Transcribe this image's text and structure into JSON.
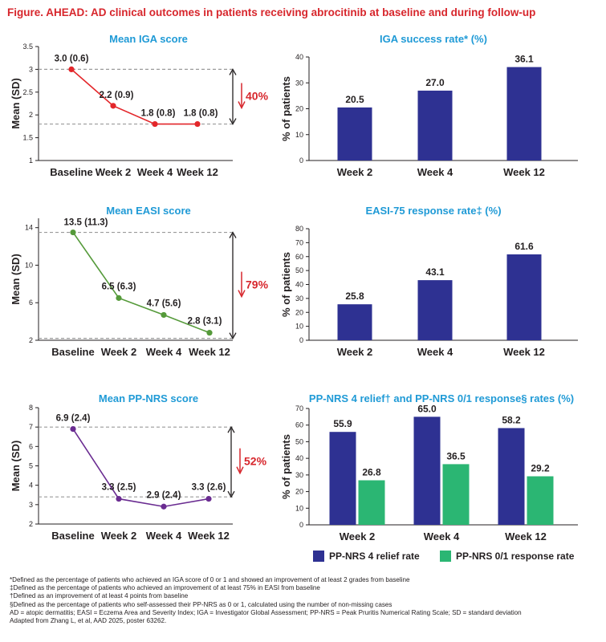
{
  "figure_title": "Figure. AHEAD: AD clinical outcomes in patients receiving abrocitinib at baseline and during follow-up",
  "colors": {
    "title_red": "#d7262c",
    "panel_title_blue": "#1f9ad6",
    "iga_line": "#e3262a",
    "easi_line": "#559a3a",
    "ppnrs_line": "#6a2c91",
    "bar_blue": "#2e3192",
    "bar_green": "#2bb673",
    "reduction_red": "#d7262c",
    "dashed_grey": "#9a9a9a"
  },
  "chart_data": [
    {
      "id": "iga_mean",
      "type": "line",
      "title": "Mean IGA score",
      "ylabel": "Mean (SD)",
      "xlabel": "",
      "categories": [
        "Baseline",
        "Week 2",
        "Week 4",
        "Week 12"
      ],
      "series": [
        {
          "values": [
            3.0,
            2.2,
            1.8,
            1.8
          ]
        }
      ],
      "data_labels": [
        "3.0 (0.6)",
        "2.2 (0.9)",
        "1.8 (0.8)",
        "1.8 (0.8)"
      ],
      "ylim": [
        1,
        3.5
      ],
      "yticks": [
        "1",
        "1.5",
        "2",
        "2.5",
        "3",
        "3.5"
      ],
      "reference_lines": [
        3.0,
        1.8
      ],
      "reduction_label": "40%",
      "grid": false
    },
    {
      "id": "iga_success",
      "type": "bar",
      "title": "IGA success rate* (%)",
      "ylabel": "% of patients",
      "xlabel": "",
      "categories": [
        "Week 2",
        "Week 4",
        "Week 12"
      ],
      "series": [
        {
          "values": [
            20.5,
            27.0,
            36.1
          ]
        }
      ],
      "data_labels": [
        "20.5",
        "27.0",
        "36.1"
      ],
      "ylim": [
        0,
        40
      ],
      "yticks": [
        "0",
        "10",
        "20",
        "30",
        "40"
      ],
      "grid": false
    },
    {
      "id": "easi_mean",
      "type": "line",
      "title": "Mean EASI score",
      "ylabel": "Mean (SD)",
      "xlabel": "",
      "categories": [
        "Baseline",
        "Week 2",
        "Week 4",
        "Week 12"
      ],
      "series": [
        {
          "values": [
            13.5,
            6.5,
            4.7,
            2.8
          ]
        }
      ],
      "data_labels": [
        "13.5 (11.3)",
        "6.5 (6.3)",
        "4.7 (5.6)",
        "2.8 (3.1)"
      ],
      "ylim": [
        2,
        15
      ],
      "yticks": [
        "2",
        "6",
        "10",
        "14"
      ],
      "reference_lines": [
        13.5,
        2.2
      ],
      "reduction_label": "79%",
      "grid": false
    },
    {
      "id": "easi75",
      "type": "bar",
      "title": "EASI-75 response rate‡ (%)",
      "ylabel": "% of patients",
      "xlabel": "",
      "categories": [
        "Week 2",
        "Week 4",
        "Week 12"
      ],
      "series": [
        {
          "values": [
            25.8,
            43.1,
            61.6
          ]
        }
      ],
      "data_labels": [
        "25.8",
        "43.1",
        "61.6"
      ],
      "ylim": [
        0,
        80
      ],
      "yticks": [
        "0",
        "10",
        "20",
        "30",
        "40",
        "50",
        "60",
        "70",
        "80"
      ],
      "grid": false
    },
    {
      "id": "ppnrs_mean",
      "type": "line",
      "title": "Mean PP-NRS score",
      "ylabel": "Mean (SD)",
      "xlabel": "",
      "categories": [
        "Baseline",
        "Week 2",
        "Week 4",
        "Week 12"
      ],
      "series": [
        {
          "values": [
            6.9,
            3.3,
            2.9,
            3.3
          ]
        }
      ],
      "data_labels": [
        "6.9 (2.4)",
        "3.3 (2.5)",
        "2.9 (2.4)",
        "3.3 (2.6)"
      ],
      "ylim": [
        2,
        8
      ],
      "yticks": [
        "2",
        "3",
        "4",
        "5",
        "6",
        "7",
        "8"
      ],
      "reference_lines": [
        7.0,
        3.4
      ],
      "reduction_label": "52%",
      "grid": false
    },
    {
      "id": "ppnrs_rates",
      "type": "bar",
      "title": "PP-NRS 4 relief† and PP-NRS 0/1 response§ rates (%)",
      "ylabel": "% of patients",
      "xlabel": "",
      "categories": [
        "Week 2",
        "Week 4",
        "Week 12"
      ],
      "series": [
        {
          "name": "PP-NRS 4 relief rate",
          "values": [
            55.9,
            65.0,
            58.2
          ],
          "data_labels": [
            "55.9",
            "65.0",
            "58.2"
          ]
        },
        {
          "name": "PP-NRS 0/1 response rate",
          "values": [
            26.8,
            36.5,
            29.2
          ],
          "data_labels": [
            "26.8",
            "36.5",
            "29.2"
          ]
        }
      ],
      "ylim": [
        0,
        70
      ],
      "yticks": [
        "0",
        "10",
        "20",
        "30",
        "40",
        "50",
        "60",
        "70"
      ],
      "legend_position": "bottom",
      "grid": false
    }
  ],
  "footnotes": [
    "*Defined as the percentage of patients who achieved an IGA score of 0 or 1 and showed an improvement of at least 2 grades from baseline",
    "‡Defined as the percentage of patients who achieved an improvement of at least 75% in EASI from baseline",
    "†Defined as an improvement of at least 4 points from baseline",
    "§Defined as the percentage of patients who self-assessed their PP-NRS as 0 or 1, calculated using the number of non-missing cases",
    "AD = atopic dermatitis; EASI = Eczema Area and Severity Index; IGA = Investigator Global Assessment; PP-NRS = Peak Pruritis Numerical Rating Scale; SD = standard deviation",
    "Adapted from Zhang L, et al, AAD 2025, poster 63262."
  ]
}
